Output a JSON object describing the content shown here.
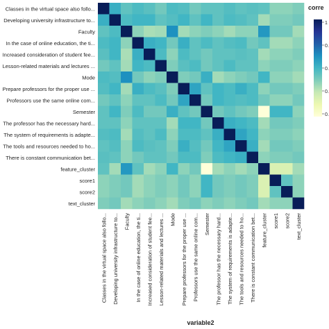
{
  "chart_data": {
    "type": "heatmap",
    "xlabel": "variable2",
    "legend_title": "corre",
    "colorbar_ticks": [
      "1",
      "0.",
      "0.",
      "0.",
      "0."
    ],
    "row_labels": [
      "Classes in the virtual space also follo...",
      "Developing university infrastructure to...",
      "Faculty",
      "In the case of online education, the ti...",
      "Increased consideration of student fee...",
      "Lesson-related materials and lectures ...",
      "Mode",
      "Prepare professors for the proper use ...",
      "Professors use the same online com...",
      "Semester",
      "The professor has the necessary hard...",
      "The system of requirements is adapte...",
      "The tools and resources needed to ho...",
      "There is constant communication bet...",
      "feature_cluster",
      "score1",
      "score2",
      "text_cluster"
    ],
    "column_labels": [
      "Classes in the virtual space also follo...",
      "Developing university infrastructure to...",
      "Faculty",
      "In the case of online education, the ti...",
      "Increased consideration of student fee...",
      "Lesson-related materials and lectures ...",
      "Mode",
      "Prepare professors for the proper use ...",
      "Professors use the same online com...",
      "Semester",
      "The professor has the necessary hard...",
      "The system of requirements is adapte...",
      "The tools and resources needed to ho...",
      "There is constant communication bet...",
      "feature_cluster",
      "score1",
      "score2",
      "text_cluster"
    ],
    "values": [
      [
        1.0,
        0.62,
        0.55,
        0.58,
        0.56,
        0.52,
        0.58,
        0.57,
        0.52,
        0.55,
        0.55,
        0.57,
        0.55,
        0.56,
        0.55,
        0.48,
        0.48,
        0.5
      ],
      [
        0.62,
        1.0,
        0.58,
        0.6,
        0.6,
        0.55,
        0.57,
        0.6,
        0.55,
        0.6,
        0.55,
        0.58,
        0.57,
        0.55,
        0.45,
        0.5,
        0.5,
        0.52
      ],
      [
        0.55,
        0.58,
        1.0,
        0.48,
        0.44,
        0.45,
        0.7,
        0.45,
        0.48,
        0.5,
        0.48,
        0.45,
        0.48,
        0.48,
        0.68,
        0.52,
        0.52,
        0.45
      ],
      [
        0.58,
        0.6,
        0.48,
        1.0,
        0.62,
        0.6,
        0.52,
        0.62,
        0.55,
        0.58,
        0.55,
        0.57,
        0.58,
        0.52,
        0.55,
        0.45,
        0.45,
        0.48
      ],
      [
        0.56,
        0.6,
        0.44,
        0.62,
        1.0,
        0.58,
        0.48,
        0.58,
        0.55,
        0.52,
        0.55,
        0.55,
        0.56,
        0.55,
        0.45,
        0.48,
        0.48,
        0.5
      ],
      [
        0.52,
        0.55,
        0.45,
        0.6,
        0.58,
        1.0,
        0.5,
        0.56,
        0.58,
        0.52,
        0.55,
        0.58,
        0.55,
        0.55,
        0.48,
        0.5,
        0.5,
        0.48
      ],
      [
        0.58,
        0.57,
        0.7,
        0.52,
        0.48,
        0.5,
        1.0,
        0.5,
        0.52,
        0.62,
        0.45,
        0.48,
        0.5,
        0.52,
        0.6,
        0.48,
        0.48,
        0.45
      ],
      [
        0.57,
        0.6,
        0.45,
        0.62,
        0.58,
        0.56,
        0.5,
        1.0,
        0.65,
        0.55,
        0.6,
        0.58,
        0.62,
        0.58,
        0.48,
        0.52,
        0.52,
        0.5
      ],
      [
        0.52,
        0.55,
        0.48,
        0.55,
        0.55,
        0.58,
        0.52,
        0.65,
        1.0,
        0.52,
        0.6,
        0.58,
        0.57,
        0.58,
        0.52,
        0.48,
        0.48,
        0.52
      ],
      [
        0.55,
        0.6,
        0.5,
        0.58,
        0.52,
        0.52,
        0.62,
        0.55,
        0.52,
        1.0,
        0.52,
        0.55,
        0.52,
        0.5,
        0.2,
        0.6,
        0.6,
        0.48
      ],
      [
        0.55,
        0.55,
        0.48,
        0.55,
        0.55,
        0.55,
        0.45,
        0.6,
        0.6,
        0.52,
        1.0,
        0.62,
        0.6,
        0.58,
        0.45,
        0.52,
        0.52,
        0.5
      ],
      [
        0.57,
        0.58,
        0.45,
        0.57,
        0.55,
        0.58,
        0.48,
        0.58,
        0.58,
        0.55,
        0.62,
        1.0,
        0.65,
        0.6,
        0.48,
        0.5,
        0.5,
        0.48
      ],
      [
        0.55,
        0.57,
        0.48,
        0.58,
        0.56,
        0.55,
        0.5,
        0.62,
        0.57,
        0.52,
        0.6,
        0.65,
        1.0,
        0.62,
        0.45,
        0.52,
        0.52,
        0.5
      ],
      [
        0.56,
        0.55,
        0.48,
        0.52,
        0.55,
        0.55,
        0.52,
        0.58,
        0.58,
        0.5,
        0.58,
        0.6,
        0.62,
        1.0,
        0.48,
        0.5,
        0.5,
        0.52
      ],
      [
        0.55,
        0.45,
        0.68,
        0.55,
        0.45,
        0.48,
        0.6,
        0.48,
        0.52,
        0.2,
        0.45,
        0.48,
        0.45,
        0.48,
        1.0,
        0.35,
        0.35,
        0.45
      ],
      [
        0.48,
        0.5,
        0.52,
        0.45,
        0.48,
        0.5,
        0.48,
        0.52,
        0.48,
        0.6,
        0.52,
        0.5,
        0.52,
        0.5,
        0.35,
        1.0,
        0.55,
        0.48
      ],
      [
        0.48,
        0.5,
        0.52,
        0.45,
        0.48,
        0.5,
        0.48,
        0.52,
        0.48,
        0.6,
        0.52,
        0.5,
        0.52,
        0.5,
        0.35,
        0.55,
        1.0,
        0.48
      ],
      [
        0.5,
        0.52,
        0.45,
        0.48,
        0.5,
        0.48,
        0.45,
        0.5,
        0.52,
        0.48,
        0.5,
        0.48,
        0.5,
        0.52,
        0.45,
        0.48,
        0.48,
        1.0
      ]
    ],
    "color_scale": [
      "#ffffd9",
      "#edf8b1",
      "#c7e9b4",
      "#7fcdbb",
      "#41b6c4",
      "#1d91c0",
      "#225ea8",
      "#253494",
      "#081d58"
    ]
  }
}
